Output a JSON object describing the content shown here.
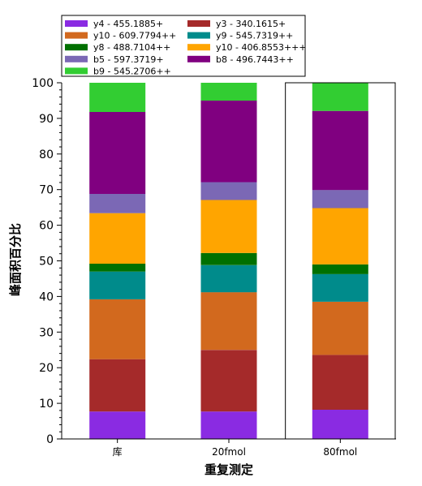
{
  "chart_data": {
    "type": "bar",
    "stacked": true,
    "title": "",
    "xlabel": "重复测定",
    "ylabel": "峰面积百分比",
    "ylim": [
      0,
      100
    ],
    "yticks": [
      0,
      10,
      20,
      30,
      40,
      50,
      60,
      70,
      80,
      90,
      100
    ],
    "categories": [
      "库",
      "20fmol",
      "80fmol"
    ],
    "highlighted_category": "80fmol",
    "legend_position": "top",
    "legend_entries": [
      {
        "name": "y4 - 455.1885+",
        "color": "#8a2be2"
      },
      {
        "name": "y3 - 340.1615+",
        "color": "#a52a2a"
      },
      {
        "name": "y10 - 609.7794++",
        "color": "#d2691e"
      },
      {
        "name": "y9 - 545.7319++",
        "color": "#008b8b"
      },
      {
        "name": "y8 - 488.7104++",
        "color": "#007000"
      },
      {
        "name": "y10 - 406.8553+++",
        "color": "#ffa500"
      },
      {
        "name": "b5 - 597.3719+",
        "color": "#7b68b5"
      },
      {
        "name": "b8 - 496.7443++",
        "color": "#800080"
      },
      {
        "name": "b9 - 545.2706++",
        "color": "#32cd32"
      }
    ],
    "series": [
      {
        "name": "y4 - 455.1885+",
        "color": "#8a2be2",
        "values": [
          7.7,
          7.7,
          8.2
        ]
      },
      {
        "name": "y3 - 340.1615+",
        "color": "#a52a2a",
        "values": [
          14.7,
          17.3,
          15.4
        ]
      },
      {
        "name": "y10 - 609.7794++",
        "color": "#d2691e",
        "values": [
          16.8,
          16.2,
          14.9
        ]
      },
      {
        "name": "y9 - 545.7319++",
        "color": "#008b8b",
        "values": [
          7.8,
          7.6,
          7.8
        ]
      },
      {
        "name": "y8 - 488.7104++",
        "color": "#007000",
        "values": [
          2.2,
          3.4,
          2.7
        ]
      },
      {
        "name": "y10 - 406.8553+++",
        "color": "#ffa500",
        "values": [
          14.2,
          14.9,
          15.8
        ]
      },
      {
        "name": "b5 - 597.3719+",
        "color": "#7b68b5",
        "values": [
          5.4,
          5.0,
          5.1
        ]
      },
      {
        "name": "b8 - 496.7443++",
        "color": "#800080",
        "values": [
          23.0,
          22.9,
          22.2
        ]
      },
      {
        "name": "b9 - 545.2706++",
        "color": "#32cd32",
        "values": [
          8.2,
          5.0,
          7.9
        ]
      }
    ]
  }
}
